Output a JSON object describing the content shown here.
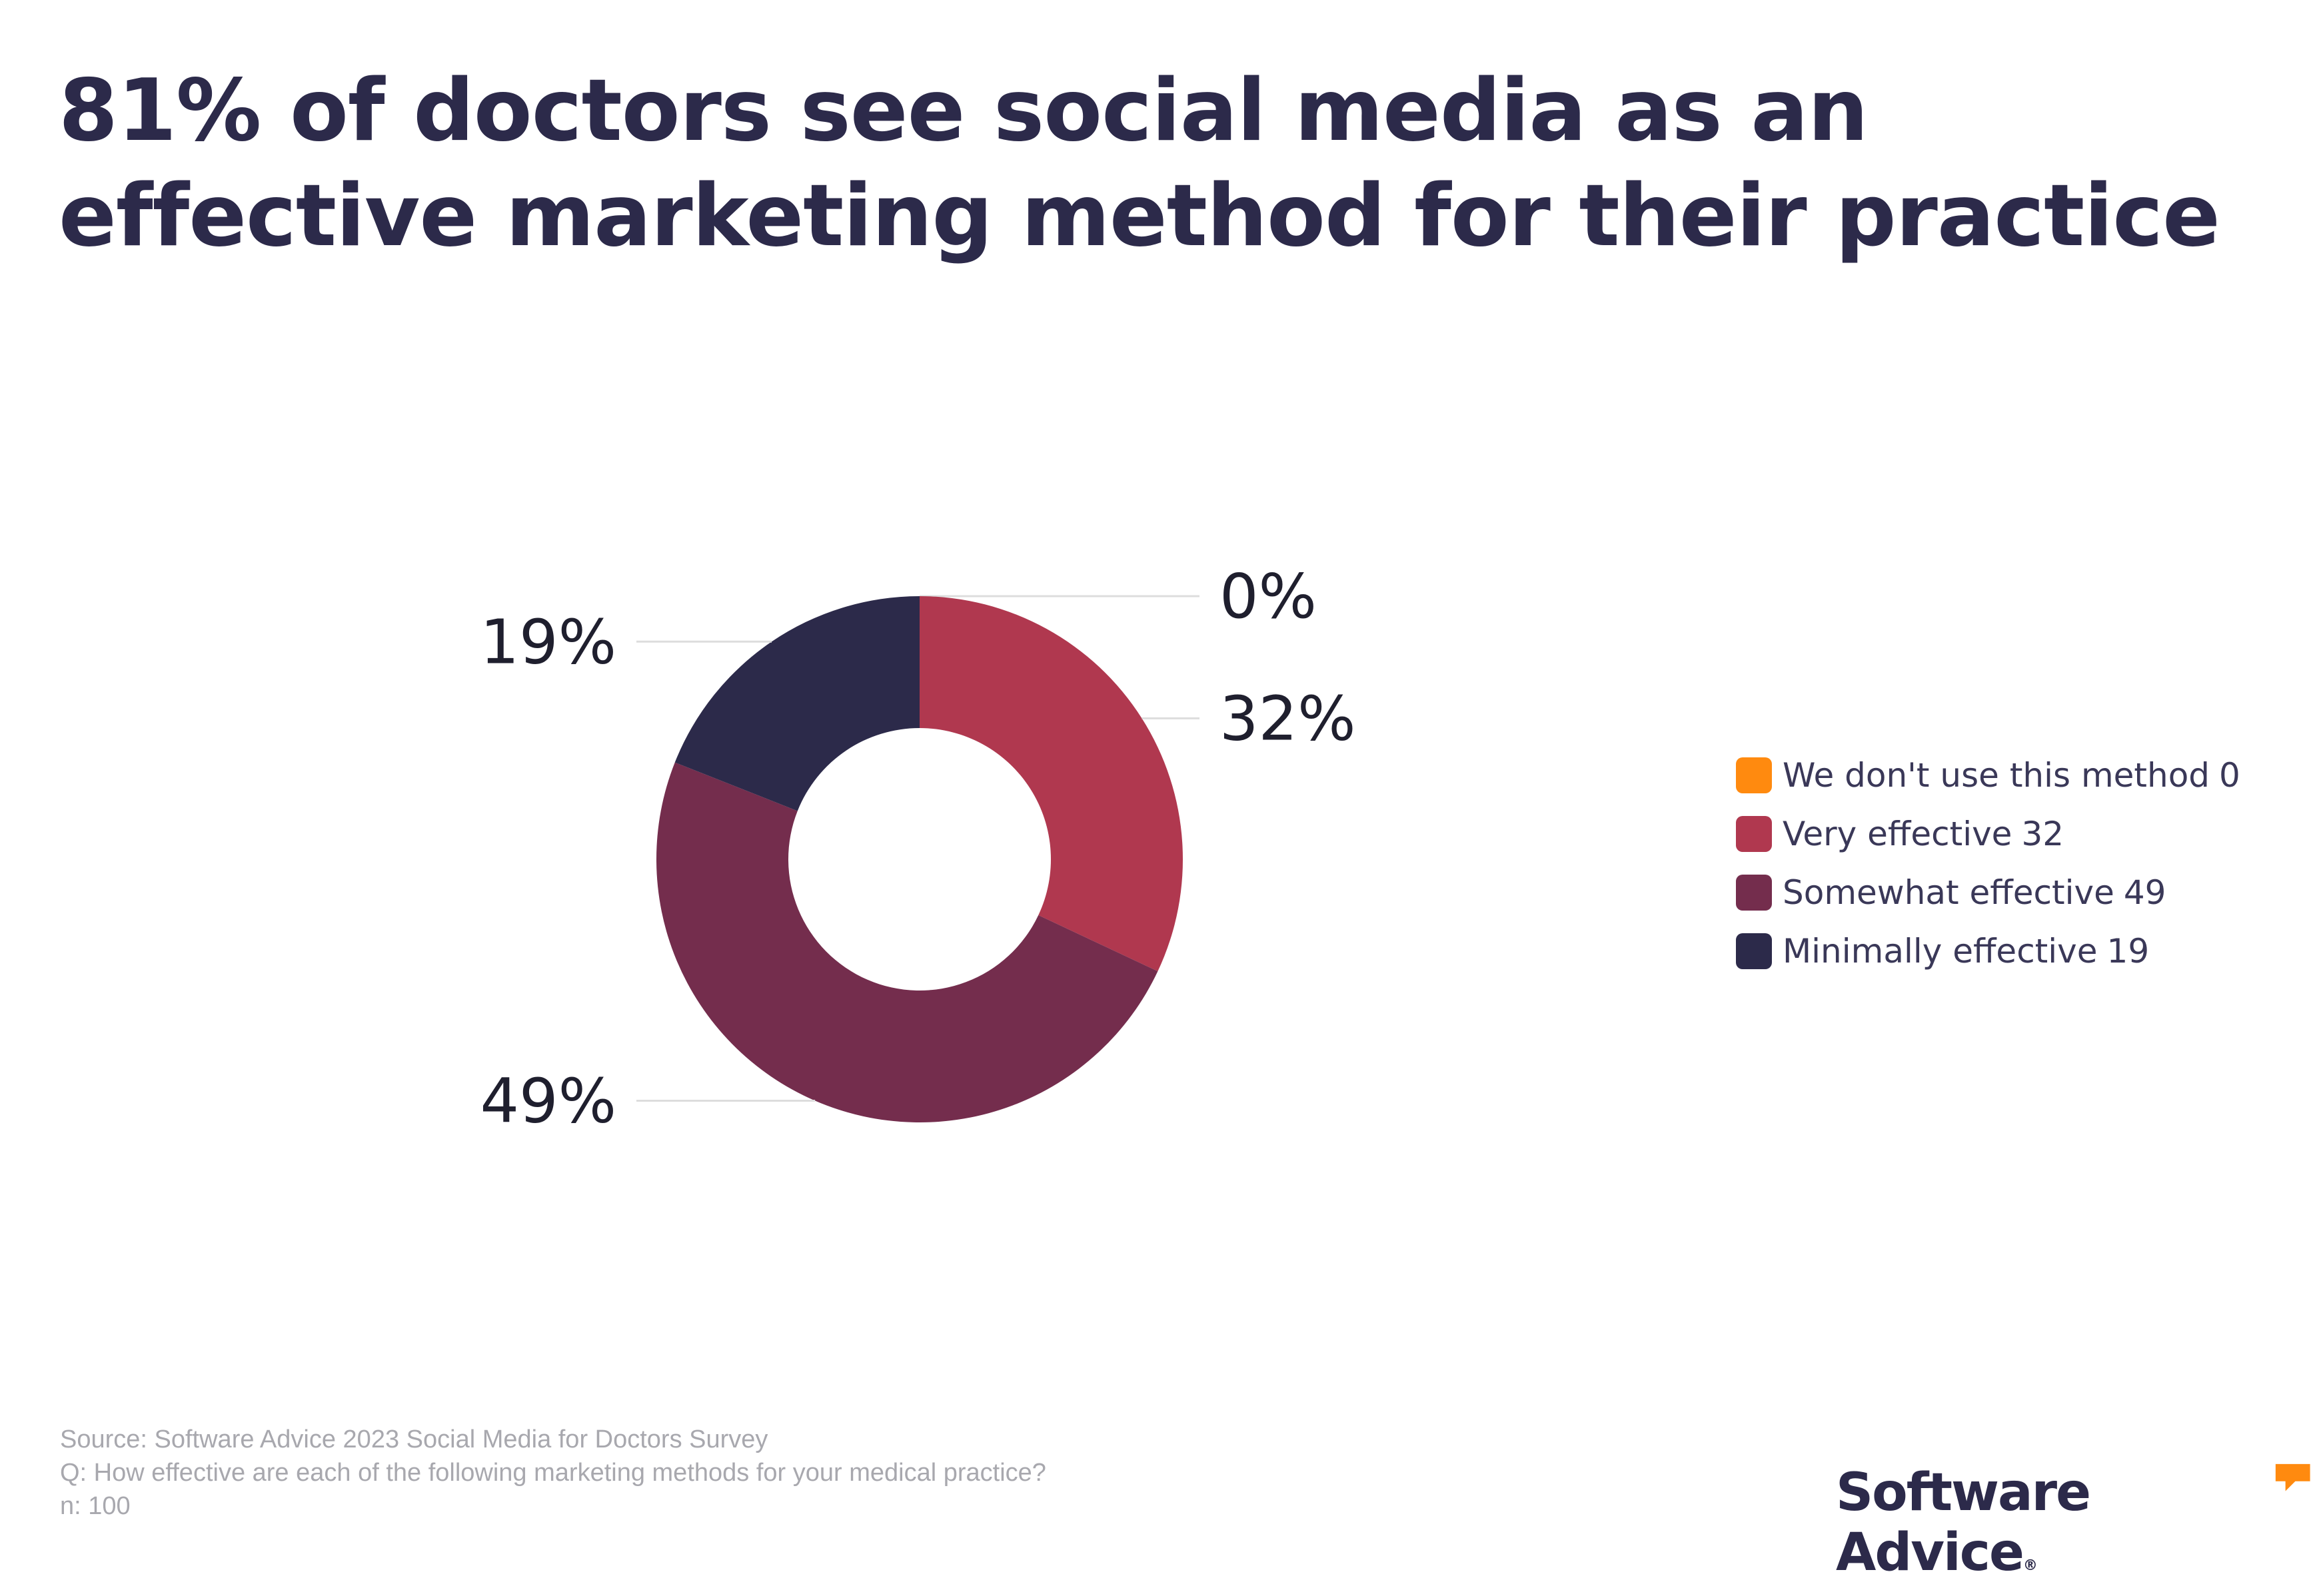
{
  "chart_data": {
    "type": "pie",
    "style": "donut",
    "title": "81% of doctors see social media as an effective marketing method for their practice",
    "categories": [
      "We don't use this method",
      "Very effective",
      "Somewhat effective",
      "Minimally effective"
    ],
    "values": [
      0,
      32,
      49,
      19
    ],
    "data_labels": [
      "0%",
      "32%",
      "49%",
      "19%"
    ],
    "colors": [
      "#ff8a0f",
      "#b0384f",
      "#742d4d",
      "#2c2a4a"
    ],
    "legend": [
      {
        "label": "We don't use this method",
        "value": "0",
        "color": "#ff8a0f"
      },
      {
        "label": "Very effective",
        "value": "32",
        "color": "#b0384f"
      },
      {
        "label": "Somewhat effective",
        "value": "49",
        "color": "#742d4d"
      },
      {
        "label": "Minimally effective",
        "value": "19",
        "color": "#2c2a4a"
      }
    ],
    "legend_position": "right"
  },
  "footer": {
    "source": "Source: Software Advice 2023 Social Media for Doctors Survey",
    "question": "Q: How effective are each of the following marketing methods for your medical practice?",
    "sample": "n: 100"
  },
  "brand": {
    "name": "Software Advice",
    "mark": "®",
    "icon": "speech-bubble-icon",
    "icon_color": "#ff8a0f"
  }
}
